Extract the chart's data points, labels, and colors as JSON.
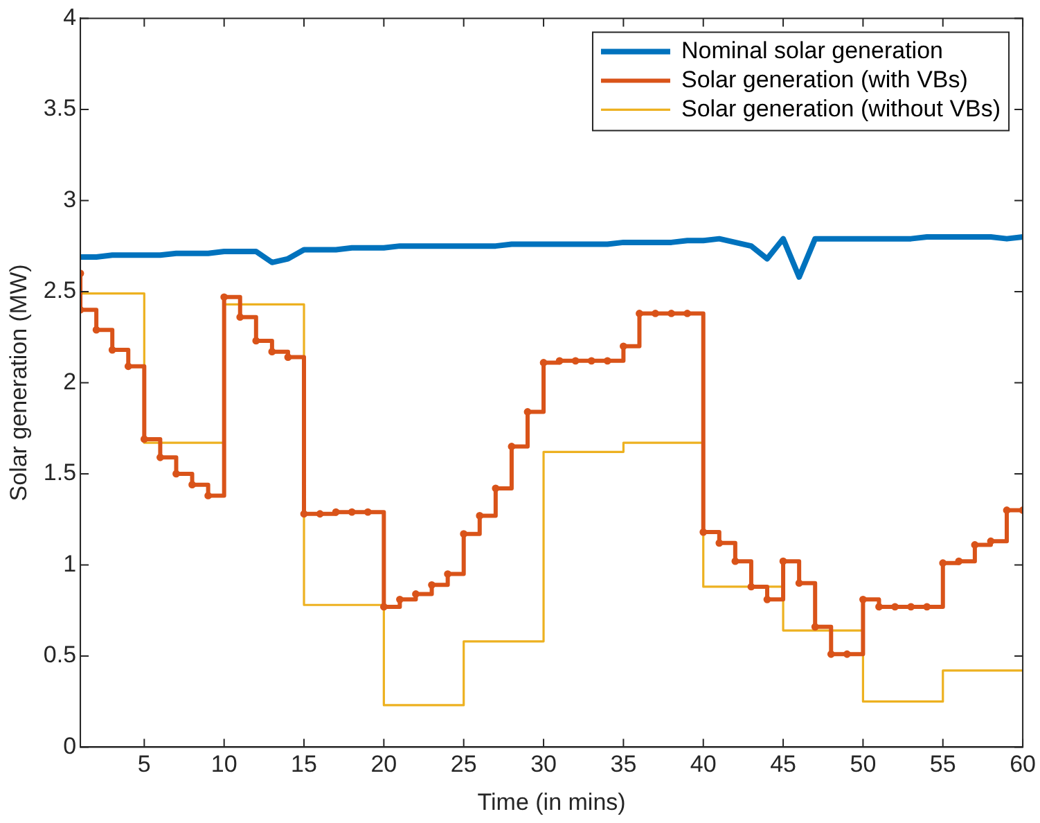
{
  "chart_data": {
    "type": "step",
    "xlabel": "Time (in mins)",
    "ylabel": "Solar generation (MW)",
    "xlim": [
      1,
      60
    ],
    "xticks": [
      5,
      10,
      15,
      20,
      25,
      30,
      35,
      40,
      45,
      50,
      55,
      60
    ],
    "ylim": [
      0,
      4
    ],
    "yticks": [
      0,
      0.5,
      1,
      1.5,
      2,
      2.5,
      3,
      3.5,
      4
    ],
    "grid": false,
    "legend": "top right",
    "series": [
      {
        "name": "Nominal solar generation",
        "type": "line",
        "color": "#0072bd",
        "x": [
          1,
          2,
          3,
          4,
          5,
          6,
          7,
          8,
          9,
          10,
          11,
          12,
          13,
          14,
          15,
          16,
          17,
          18,
          19,
          20,
          21,
          22,
          23,
          24,
          25,
          26,
          27,
          28,
          29,
          30,
          31,
          32,
          33,
          34,
          35,
          36,
          37,
          38,
          39,
          40,
          41,
          42,
          43,
          44,
          45,
          46,
          47,
          48,
          49,
          50,
          51,
          52,
          53,
          54,
          55,
          56,
          57,
          58,
          59,
          60
        ],
        "values": [
          2.69,
          2.69,
          2.7,
          2.7,
          2.7,
          2.7,
          2.71,
          2.71,
          2.71,
          2.72,
          2.72,
          2.72,
          2.66,
          2.68,
          2.73,
          2.73,
          2.73,
          2.74,
          2.74,
          2.74,
          2.75,
          2.75,
          2.75,
          2.75,
          2.75,
          2.75,
          2.75,
          2.76,
          2.76,
          2.76,
          2.76,
          2.76,
          2.76,
          2.76,
          2.77,
          2.77,
          2.77,
          2.77,
          2.78,
          2.78,
          2.79,
          2.77,
          2.75,
          2.68,
          2.79,
          2.58,
          2.79,
          2.79,
          2.79,
          2.79,
          2.79,
          2.79,
          2.79,
          2.8,
          2.8,
          2.8,
          2.8,
          2.8,
          2.79,
          2.8
        ]
      },
      {
        "name": "Solar generation (with VBs)",
        "color": "#d95319",
        "marker": "circle",
        "x": [
          1,
          1,
          2,
          3,
          4,
          5,
          6,
          7,
          8,
          9,
          10,
          11,
          12,
          13,
          14,
          15,
          16,
          17,
          18,
          19,
          20,
          21,
          22,
          23,
          24,
          25,
          26,
          27,
          28,
          29,
          30,
          31,
          32,
          33,
          34,
          35,
          36,
          37,
          38,
          39,
          40,
          41,
          42,
          43,
          44,
          45,
          46,
          47,
          48,
          49,
          50,
          51,
          52,
          53,
          54,
          55,
          56,
          57,
          58,
          59,
          60
        ],
        "values": [
          2.6,
          2.4,
          2.29,
          2.18,
          2.09,
          1.69,
          1.59,
          1.5,
          1.44,
          1.38,
          2.47,
          2.36,
          2.23,
          2.17,
          2.14,
          1.28,
          1.28,
          1.29,
          1.29,
          1.29,
          0.77,
          0.81,
          0.84,
          0.89,
          0.95,
          1.17,
          1.27,
          1.42,
          1.65,
          1.84,
          2.11,
          2.12,
          2.12,
          2.12,
          2.12,
          2.2,
          2.38,
          2.38,
          2.38,
          2.38,
          1.18,
          1.12,
          1.02,
          0.88,
          0.81,
          1.02,
          0.9,
          0.66,
          0.51,
          0.51,
          0.81,
          0.77,
          0.77,
          0.77,
          0.77,
          1.01,
          1.02,
          1.11,
          1.13,
          1.3,
          1.3
        ]
      },
      {
        "name": "Solar generation (without VBs)",
        "color": "#edb120",
        "x": [
          1,
          5,
          10,
          15,
          20,
          25,
          30,
          35,
          40,
          45,
          50,
          55,
          60
        ],
        "values": [
          2.49,
          1.67,
          2.43,
          0.78,
          0.23,
          0.58,
          1.62,
          1.67,
          0.88,
          0.64,
          0.25,
          0.42,
          0.42
        ]
      }
    ]
  }
}
